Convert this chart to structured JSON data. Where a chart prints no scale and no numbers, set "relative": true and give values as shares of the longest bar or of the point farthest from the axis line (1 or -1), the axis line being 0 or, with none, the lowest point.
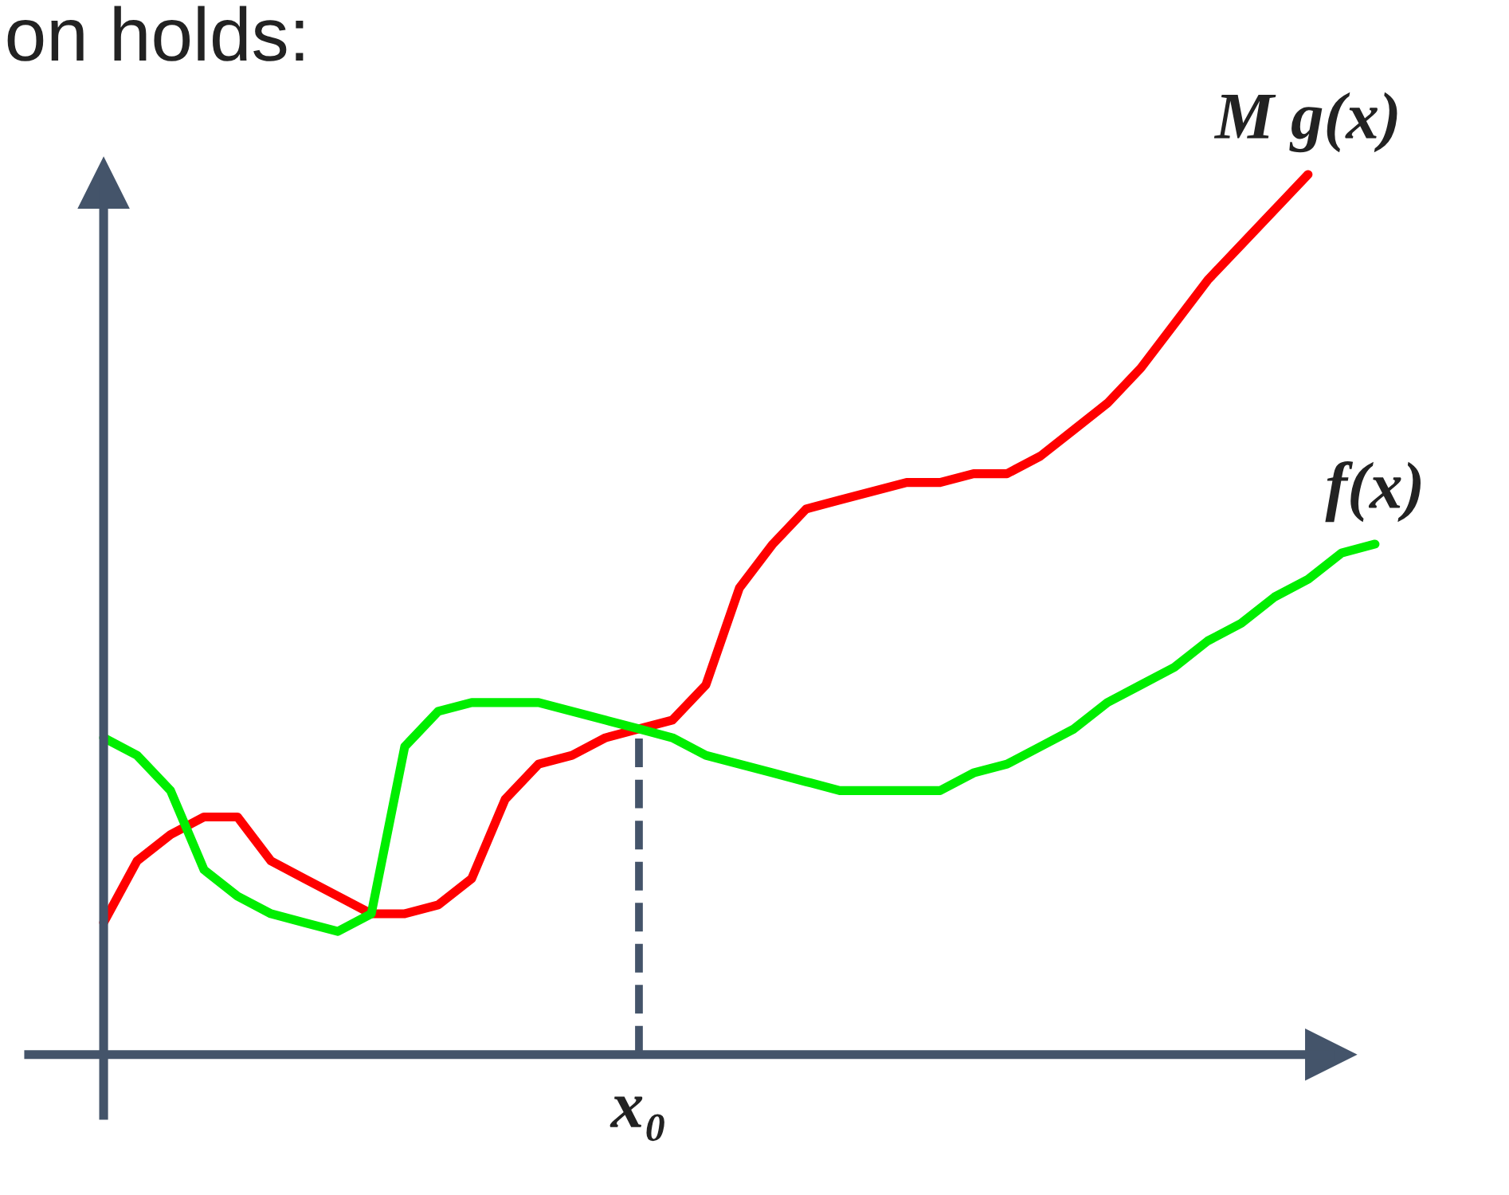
{
  "chart_data": {
    "type": "line",
    "title": "on holds:",
    "relative": true,
    "line_style": "solid",
    "categories": [
      null,
      null,
      null,
      null,
      null,
      null,
      null,
      null,
      null,
      null,
      null,
      null,
      null,
      null,
      null,
      null,
      null,
      null,
      null,
      null,
      null,
      null,
      null,
      null,
      null,
      null,
      null,
      null,
      null,
      null,
      null,
      null,
      null,
      null,
      null,
      null,
      null,
      null,
      null
    ],
    "series": [
      {
        "name": "M g(x)",
        "color": "#ff0000",
        "values": [
          0.15,
          0.22,
          0.25,
          0.27,
          0.27,
          0.22,
          0.2,
          0.18,
          0.16,
          0.16,
          0.17,
          0.2,
          0.29,
          0.33,
          0.34,
          0.36,
          0.37,
          0.38,
          0.42,
          0.53,
          0.58,
          0.62,
          0.63,
          0.64,
          0.65,
          0.65,
          0.66,
          0.66,
          0.68,
          0.71,
          0.74,
          0.78,
          0.83,
          0.88,
          0.92,
          0.96,
          1.0,
          null,
          null
        ]
      },
      {
        "name": "f(x)",
        "color": "#00ee00",
        "values": [
          0.36,
          0.34,
          0.3,
          0.21,
          0.18,
          0.16,
          0.15,
          0.14,
          0.16,
          0.35,
          0.39,
          0.4,
          0.4,
          0.4,
          0.39,
          0.38,
          0.37,
          0.36,
          0.34,
          0.33,
          0.32,
          0.31,
          0.3,
          0.3,
          0.3,
          0.3,
          0.32,
          0.33,
          0.35,
          0.37,
          0.4,
          0.42,
          0.44,
          0.47,
          0.49,
          0.52,
          0.54,
          0.57,
          0.58
        ]
      }
    ],
    "annotations": [
      "x₀"
    ]
  }
}
